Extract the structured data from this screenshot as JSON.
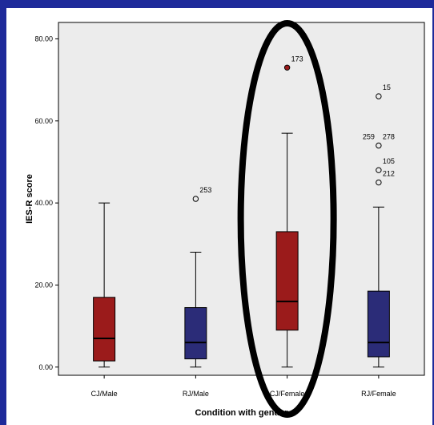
{
  "chart_data": {
    "type": "boxplot",
    "xlabel": "Condition with gender",
    "ylabel": "IES-R score",
    "ylim": [
      -2,
      84
    ],
    "yticks": [
      "0.00",
      "20.00",
      "40.00",
      "60.00",
      "80.00"
    ],
    "yticks_values": [
      0,
      20,
      40,
      60,
      80
    ],
    "categories": [
      "CJ/Male",
      "RJ/Male",
      "CJ/Female",
      "RJ/Female"
    ],
    "boxes": [
      {
        "category": "CJ/Male",
        "min": 0,
        "q1": 1.5,
        "median": 7,
        "q3": 17,
        "max": 40,
        "color": "#9b1b1b",
        "outliers": []
      },
      {
        "category": "RJ/Male",
        "min": 0,
        "q1": 2,
        "median": 6,
        "q3": 14.5,
        "max": 28,
        "color": "#2b2c78",
        "outliers": [
          {
            "value": 41,
            "label": "253",
            "type": "circle"
          }
        ]
      },
      {
        "category": "CJ/Female",
        "min": 0,
        "q1": 9,
        "median": 16,
        "q3": 33,
        "max": 57,
        "color": "#9b1b1b",
        "outliers": [
          {
            "value": 73,
            "label": "173",
            "type": "extreme"
          }
        ]
      },
      {
        "category": "RJ/Female",
        "min": 0,
        "q1": 2.5,
        "median": 6,
        "q3": 18.5,
        "max": 39,
        "color": "#2b2c78",
        "outliers": [
          {
            "value": 66,
            "label": "15",
            "type": "circle"
          },
          {
            "value": 54,
            "label": "259",
            "label2": "278",
            "type": "circle"
          },
          {
            "value": 48,
            "label": "105",
            "type": "circle"
          },
          {
            "value": 45,
            "label": "212",
            "type": "circle"
          }
        ]
      }
    ],
    "highlight": {
      "category": "CJ/Female",
      "shape": "ellipse",
      "color": "#000000"
    },
    "background": "#1e2a9a",
    "plot_background": "#ececec"
  }
}
